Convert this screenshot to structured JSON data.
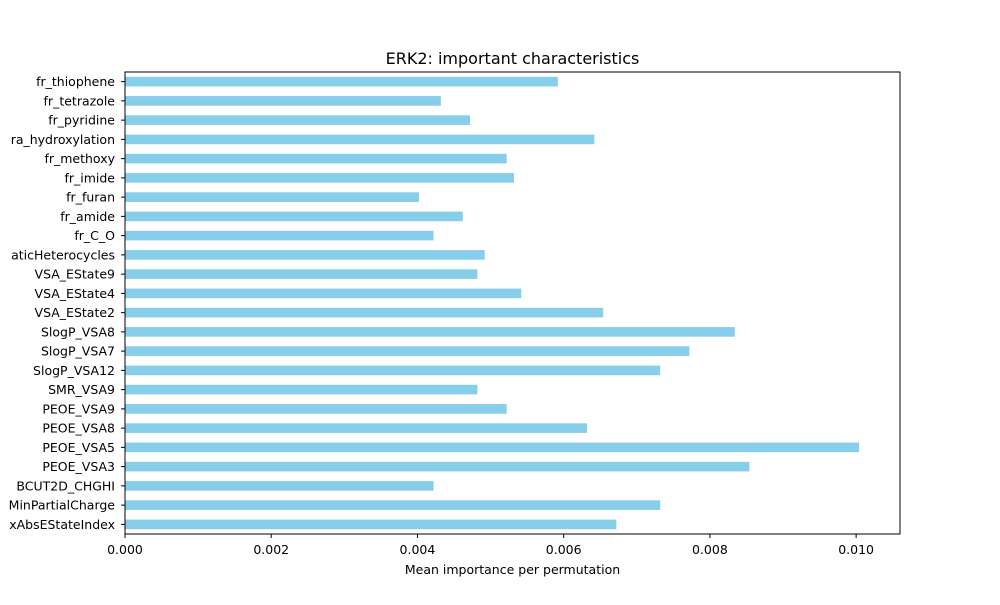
{
  "chart_data": {
    "type": "bar",
    "orientation": "horizontal",
    "title": "ERK2: important characteristics",
    "xlabel": "Mean importance per permutation",
    "ylabel": "",
    "xlim": [
      0,
      0.0106
    ],
    "xticks": [
      0,
      0.002,
      0.004,
      0.006,
      0.008,
      0.01
    ],
    "xtick_labels": [
      "0.000",
      "0.002",
      "0.004",
      "0.006",
      "0.008",
      "0.010"
    ],
    "grid": false,
    "legend": "none",
    "bar_color": "#87ceeb",
    "categories": [
      "fr_thiophene",
      "fr_tetrazole",
      "fr_pyridine",
      "ra_hydroxylation",
      "fr_methoxy",
      "fr_imide",
      "fr_furan",
      "fr_amide",
      "fr_C_O",
      "aticHeterocycles",
      "VSA_EState9",
      "VSA_EState4",
      "VSA_EState2",
      "SlogP_VSA8",
      "SlogP_VSA7",
      "SlogP_VSA12",
      "SMR_VSA9",
      "PEOE_VSA9",
      "PEOE_VSA8",
      "PEOE_VSA5",
      "PEOE_VSA3",
      "BCUT2D_CHGHI",
      "MinPartialCharge",
      "xAbsEStateIndex"
    ],
    "values": [
      0.00592,
      0.00432,
      0.00472,
      0.00642,
      0.00522,
      0.00532,
      0.00402,
      0.00462,
      0.00422,
      0.00492,
      0.00482,
      0.00542,
      0.00654,
      0.00834,
      0.00772,
      0.00732,
      0.00482,
      0.00522,
      0.00632,
      0.01004,
      0.00854,
      0.00422,
      0.00732,
      0.00672
    ]
  }
}
